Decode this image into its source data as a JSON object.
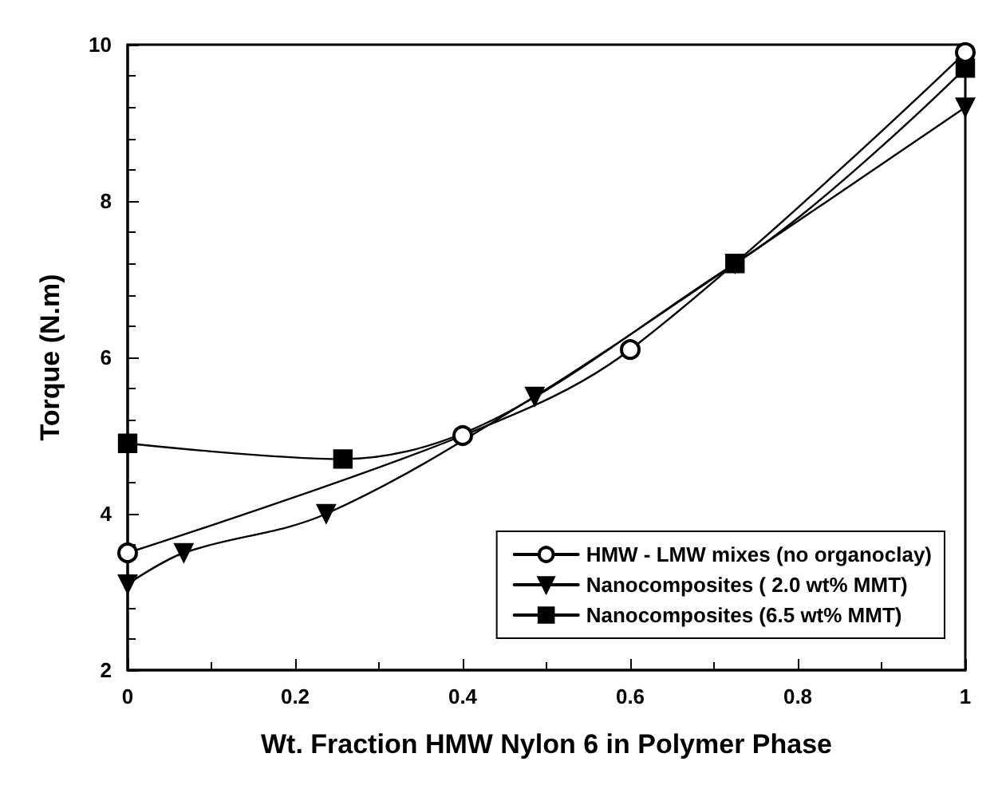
{
  "chart_data": {
    "type": "line",
    "xlabel": "Wt. Fraction HMW Nylon 6 in Polymer Phase",
    "ylabel": "Torque (N.m)",
    "xlim": [
      0,
      1
    ],
    "xticks": [
      0,
      0.2,
      0.4,
      0.6,
      0.8,
      1
    ],
    "ylim": [
      2,
      10
    ],
    "yticks": [
      2,
      4,
      6,
      8,
      10
    ],
    "grid": false,
    "legend": "bottom right",
    "line_style": "solid",
    "series": [
      {
        "name": "HMW - LMW mixes (no organoclay)",
        "color": "#000000",
        "marker": "circle",
        "x": [
          0,
          0.4,
          0.6,
          1.0
        ],
        "values": [
          3.5,
          5.0,
          6.1,
          9.9
        ]
      },
      {
        "name": "Nanocomposites ( 2.0 wt% MMT)",
        "color": "#000000",
        "marker": "triangle",
        "x": [
          0,
          0.067,
          0.237,
          0.486,
          0.725,
          1.0
        ],
        "values": [
          3.1,
          3.5,
          4.0,
          5.5,
          7.2,
          9.2
        ]
      },
      {
        "name": "Nanocomposites (6.5 wt% MMT)",
        "color": "#000000",
        "marker": "square",
        "x": [
          0,
          0.257,
          0.725,
          1.0
        ],
        "values": [
          4.9,
          4.7,
          7.2,
          9.7
        ]
      }
    ]
  }
}
